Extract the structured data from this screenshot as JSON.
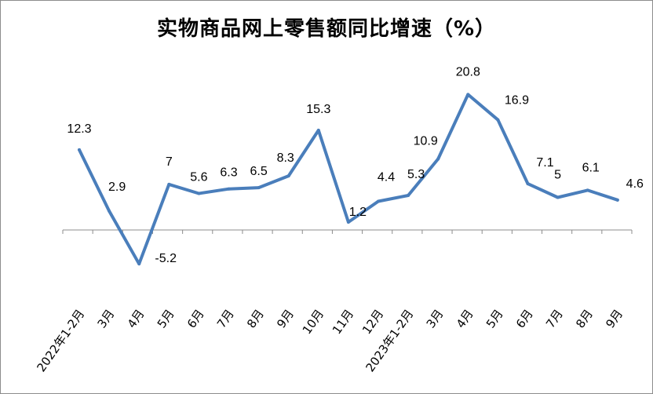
{
  "chart_data": {
    "type": "line",
    "title": "实物商品网上零售额同比增速（%）",
    "xlabel": "",
    "ylabel": "",
    "categories": [
      "2022年1-2月",
      "3月",
      "4月",
      "5月",
      "6月",
      "7月",
      "8月",
      "9月",
      "10月",
      "11月",
      "12月",
      "2023年1-2月",
      "3月",
      "4月",
      "5月",
      "6月",
      "7月",
      "8月",
      "9月"
    ],
    "series": [
      {
        "values": [
          12.3,
          2.9,
          -5.2,
          7,
          5.6,
          6.3,
          6.5,
          8.3,
          15.3,
          1.2,
          4.4,
          5.3,
          10.9,
          20.8,
          16.9,
          7.1,
          5,
          6.1,
          4.6
        ]
      }
    ],
    "data_labels": [
      "12.3",
      "2.9",
      "-5.2",
      "7",
      "5.6",
      "6.3",
      "6.5",
      "8.3",
      "15.3",
      "1.2",
      "4.4",
      "5.3",
      "10.9",
      "20.8",
      "16.9",
      "7.1",
      "5",
      "6.1",
      "4.6"
    ],
    "ylim": [
      -8,
      24
    ],
    "grid": false,
    "legend": "none",
    "colors": {
      "line": "#4a7ebb",
      "axis": "#8c8c8c"
    }
  }
}
